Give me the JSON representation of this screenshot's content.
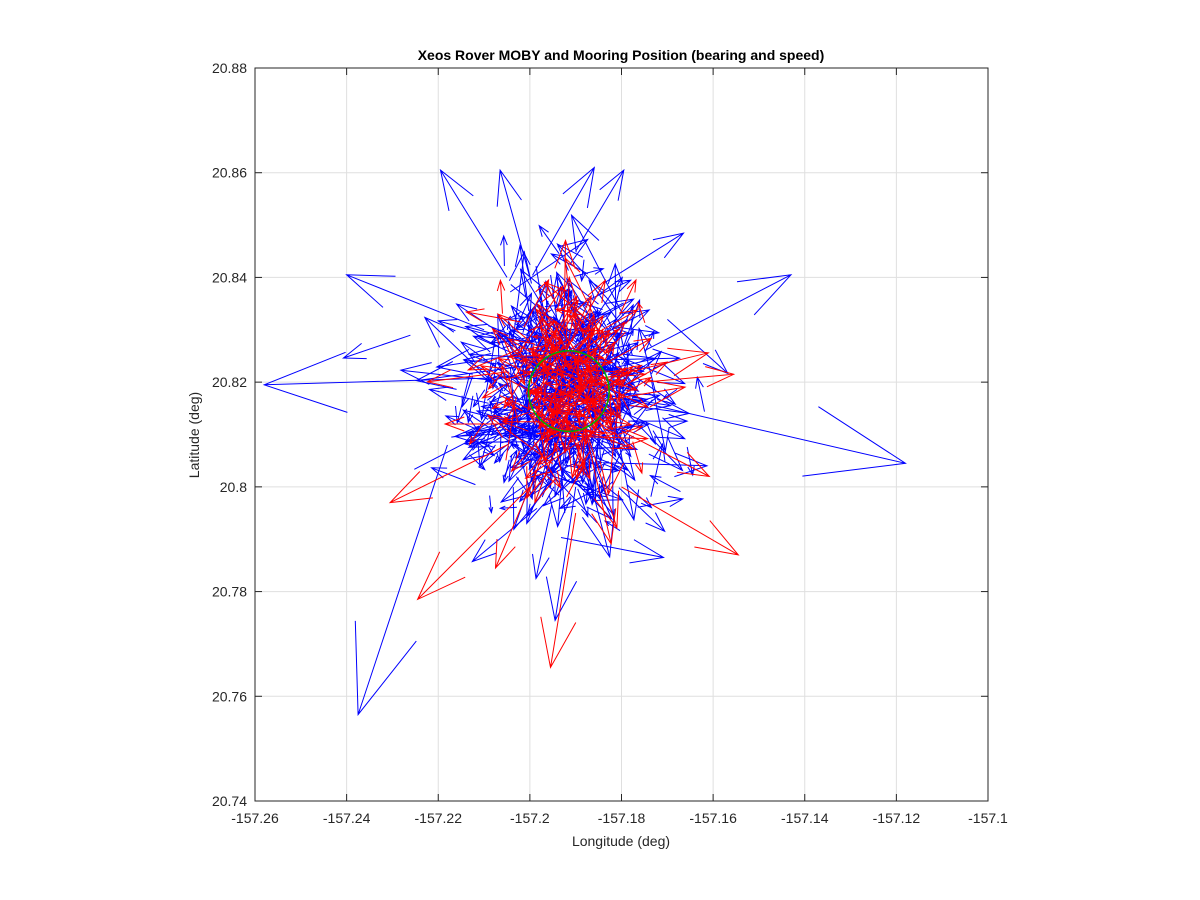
{
  "chart_data": {
    "type": "quiver",
    "title": "Xeos Rover MOBY and Mooring Position (bearing and speed)",
    "xlabel": "Longitude (deg)",
    "ylabel": "Latitude (deg)",
    "xlim": [
      -157.26,
      -157.1
    ],
    "ylim": [
      20.74,
      20.88
    ],
    "xticks": [
      -157.26,
      -157.24,
      -157.22,
      -157.2,
      -157.18,
      -157.16,
      -157.14,
      -157.12,
      -157.1
    ],
    "yticks": [
      20.74,
      20.76,
      20.78,
      20.8,
      20.82,
      20.84,
      20.86,
      20.88
    ],
    "xtick_labels": [
      "-157.26",
      "-157.24",
      "-157.22",
      "-157.2",
      "-157.18",
      "-157.16",
      "-157.14",
      "-157.12",
      "-157.1"
    ],
    "ytick_labels": [
      "20.74",
      "20.76",
      "20.78",
      "20.8",
      "20.82",
      "20.84",
      "20.86",
      "20.88"
    ],
    "grid": true,
    "series": [
      {
        "color": "#0000ff",
        "arrow_count_estimate": 450,
        "cluster_center": [
          -157.193,
          20.818
        ],
        "notable_arrows": [
          {
            "x0": -157.2,
            "y0": 20.821,
            "x1": -157.258,
            "y1": 20.8195
          },
          {
            "x0": -157.185,
            "y0": 20.818,
            "x1": -157.118,
            "y1": 20.8045
          },
          {
            "x0": -157.218,
            "y0": 20.808,
            "x1": -157.2375,
            "y1": 20.7565
          },
          {
            "x0": -157.175,
            "y0": 20.826,
            "x1": -157.143,
            "y1": 20.8405
          },
          {
            "x0": -157.21,
            "y0": 20.83,
            "x1": -157.24,
            "y1": 20.8405
          },
          {
            "x0": -157.205,
            "y0": 20.84,
            "x1": -157.2195,
            "y1": 20.8605
          },
          {
            "x0": -157.19,
            "y0": 20.845,
            "x1": -157.1795,
            "y1": 20.8605
          },
          {
            "x0": -157.2,
            "y0": 20.84,
            "x1": -157.2065,
            "y1": 20.8605
          },
          {
            "x0": -157.19,
            "y0": 20.8,
            "x1": -157.1945,
            "y1": 20.7745
          }
        ]
      },
      {
        "color": "#ff0000",
        "arrow_count_estimate": 220,
        "cluster_center": [
          -157.191,
          20.819
        ],
        "notable_arrows": [
          {
            "x0": -157.205,
            "y0": 20.808,
            "x1": -157.2305,
            "y1": 20.797
          },
          {
            "x0": -157.18,
            "y0": 20.8,
            "x1": -157.1545,
            "y1": 20.787
          },
          {
            "x0": -157.19,
            "y0": 20.795,
            "x1": -157.1955,
            "y1": 20.7655
          },
          {
            "x0": -157.2,
            "y0": 20.8,
            "x1": -157.2245,
            "y1": 20.7785
          },
          {
            "x0": -157.175,
            "y0": 20.82,
            "x1": -157.1555,
            "y1": 20.8215
          },
          {
            "x0": -157.2,
            "y0": 20.8,
            "x1": -157.2075,
            "y1": 20.7845
          },
          {
            "x0": -157.205,
            "y0": 20.812,
            "x1": -157.2185,
            "y1": 20.812
          }
        ]
      },
      {
        "color": "#00aa00",
        "shape": "circle",
        "center": [
          -157.1915,
          20.8183
        ],
        "radius_deg": 0.0088
      }
    ]
  }
}
